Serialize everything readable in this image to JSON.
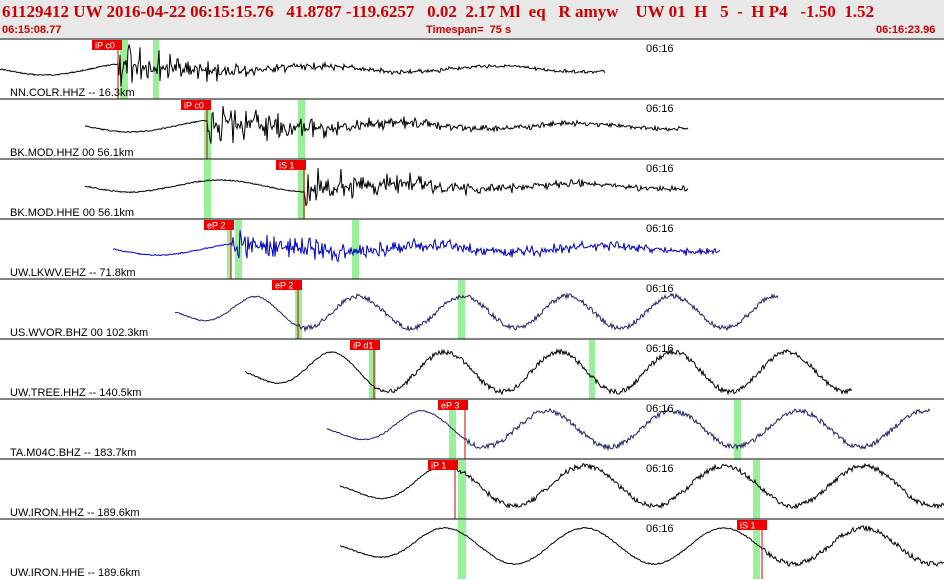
{
  "header": {
    "title": "61129412 UW 2016-04-22 06:15:15.76   41.8787 -119.6257   0.02  2.17 Ml  eq   R amyw    UW 01  H   5  -  H P4   -1.50  1.52",
    "start_time": "06:15:08.77",
    "timespan": "Timespan=  75 s",
    "end_time": "06:16:23.96"
  },
  "colors": {
    "header_text": "#cc0000",
    "pick_box": "#ee0000",
    "pick_line": "#cc0000",
    "green_marker": "#99f099",
    "black_trace": "#000000",
    "blue_trace": "#0000cc",
    "navy_trace": "#22226a"
  },
  "panels": [
    {
      "label": "NN.COLR.HHZ -- 16.3km",
      "time_label": "06:16",
      "pick_label": "iP c0",
      "color": "#000000",
      "style": "burst"
    },
    {
      "label": "BK.MOD.HHZ 00 56.1km",
      "time_label": "06:16",
      "pick_label": "iP c0",
      "color": "#000000",
      "style": "burst"
    },
    {
      "label": "BK.MOD.HHE 00 56.1km",
      "time_label": "06:16",
      "pick_label": "iS 1",
      "color": "#000000",
      "style": "burst"
    },
    {
      "label": "UW.LKWV.EHZ -- 71.8km",
      "time_label": "06:16",
      "pick_label": "eP 2",
      "color": "#0000cc",
      "style": "burst"
    },
    {
      "label": "US.WVOR.BHZ 00 102.3km",
      "time_label": "06:16",
      "pick_label": "eP 2",
      "color": "#22226a",
      "style": "wave"
    },
    {
      "label": "UW.TREE.HHZ -- 140.5km",
      "time_label": "06:16",
      "pick_label": "iP d1",
      "color": "#000000",
      "style": "wave"
    },
    {
      "label": "TA.M04C.BHZ -- 183.7km",
      "time_label": "06:16",
      "pick_label": "eP 3",
      "color": "#22226a",
      "style": "wave"
    },
    {
      "label": "UW.IRON.HHZ -- 189.6km",
      "time_label": "06:16",
      "pick_label": "iP 1",
      "color": "#000000",
      "style": "wave"
    },
    {
      "label": "UW.IRON.HHE -- 189.6km",
      "time_label": "06:16",
      "pick_label": "iS 1",
      "color": "#000000",
      "style": "wave"
    }
  ]
}
